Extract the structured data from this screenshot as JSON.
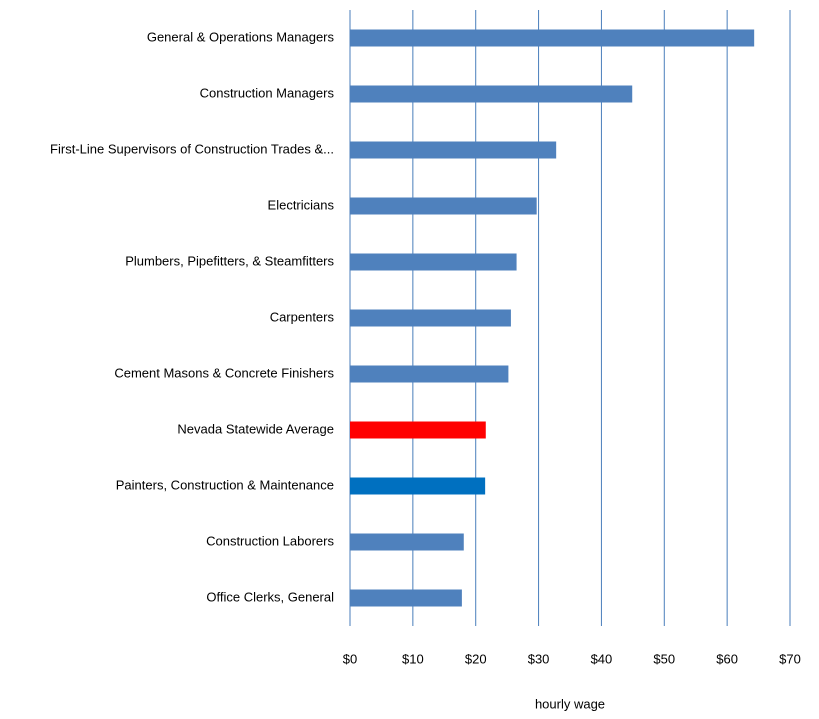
{
  "chart_data": {
    "type": "bar",
    "orientation": "horizontal",
    "x_label": "hourly wage",
    "categories": [
      "General & Operations Managers",
      "Construction Managers",
      "First-Line Supervisors of Construction Trades &...",
      "Electricians",
      "Plumbers, Pipefitters, & Steamfitters",
      "Carpenters",
      "Cement Masons & Concrete Finishers",
      "Nevada Statewide Average",
      "Painters, Construction & Maintenance",
      "Construction Laborers",
      "Office Clerks, General"
    ],
    "values": [
      64.3,
      44.9,
      32.8,
      29.7,
      26.5,
      25.6,
      25.2,
      21.6,
      21.5,
      18.1,
      17.8
    ],
    "colors": [
      "#4f81bd",
      "#4f81bd",
      "#4f81bd",
      "#4f81bd",
      "#4f81bd",
      "#4f81bd",
      "#4f81bd",
      "#ff0000",
      "#0070c0",
      "#4f81bd",
      "#4f81bd"
    ],
    "xlim": [
      0,
      70
    ],
    "xticks": [
      {
        "value": 0,
        "label": "$0"
      },
      {
        "value": 10,
        "label": "$10"
      },
      {
        "value": 20,
        "label": "$20"
      },
      {
        "value": 30,
        "label": "$30"
      },
      {
        "value": 40,
        "label": "$40"
      },
      {
        "value": 50,
        "label": "$50"
      },
      {
        "value": 60,
        "label": "$60"
      },
      {
        "value": 70,
        "label": "$70"
      }
    ],
    "grid": true
  }
}
